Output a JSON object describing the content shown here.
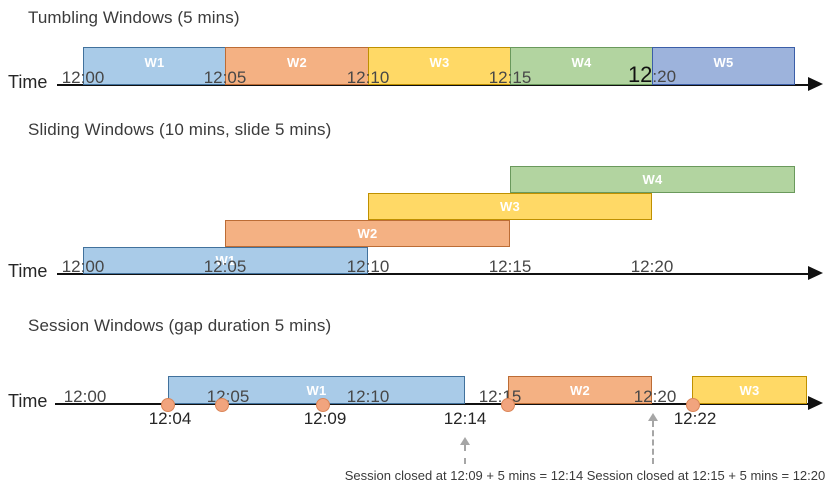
{
  "figure": {
    "sections": [
      {
        "name": "tumbling-windows",
        "title": "Tumbling Windows (5 mins)",
        "axis_label": "Time",
        "windows": [
          {
            "label": "W1",
            "color": "blue"
          },
          {
            "label": "W2",
            "color": "orange"
          },
          {
            "label": "W3",
            "color": "yellow"
          },
          {
            "label": "W4",
            "color": "green"
          },
          {
            "label": "W5",
            "color": "indigo"
          }
        ],
        "ticks": [
          {
            "text": "12:00"
          },
          {
            "text": "12:05"
          },
          {
            "text": "12:10"
          },
          {
            "text": "12:15"
          },
          {
            "text": "12:20",
            "emph": true,
            "prefix": "12",
            "suffix": ":20"
          }
        ]
      },
      {
        "name": "sliding-windows",
        "title": "Sliding Windows (10 mins, slide 5 mins)",
        "axis_label": "Time",
        "windows": [
          {
            "label": "W1",
            "color": "blue"
          },
          {
            "label": "W2",
            "color": "orange"
          },
          {
            "label": "W3",
            "color": "yellow"
          },
          {
            "label": "W4",
            "color": "green"
          }
        ],
        "ticks": [
          {
            "text": "12:00"
          },
          {
            "text": "12:05"
          },
          {
            "text": "12:10"
          },
          {
            "text": "12:15"
          },
          {
            "text": "12:20"
          }
        ]
      },
      {
        "name": "session-windows",
        "title": "Session Windows (gap duration 5 mins)",
        "axis_label": "Time",
        "windows": [
          {
            "label": "W1",
            "color": "blue"
          },
          {
            "label": "W2",
            "color": "orange"
          },
          {
            "label": "W3",
            "color": "yellow"
          }
        ],
        "ticks": [
          {
            "text": "12:00"
          },
          {
            "text": "12:05"
          },
          {
            "text": "12:10"
          },
          {
            "text": "12:15"
          },
          {
            "text": "12:20"
          }
        ],
        "event_labels": [
          "12:04",
          "12:09",
          "12:14",
          "12:22"
        ],
        "annotations": [
          "Session closed at 12:09 + 5 mins = 12:14",
          "Session closed at 12:15 + 5 mins = 12:20"
        ]
      }
    ],
    "colors": {
      "blue": "#A9CBE8",
      "blue_border": "#41719C",
      "orange": "#F4B183",
      "orange_border": "#BC6C35",
      "yellow": "#FFD966",
      "yellow_border": "#BF9000",
      "green": "#B2D4A0",
      "green_border": "#6A995C",
      "indigo": "#9DB3DC",
      "indigo_border": "#3B5EA8",
      "event_dot": "#F1A47E",
      "event_dot_border": "#DB8658",
      "dashed_arrow": "#A6A6A6"
    }
  }
}
